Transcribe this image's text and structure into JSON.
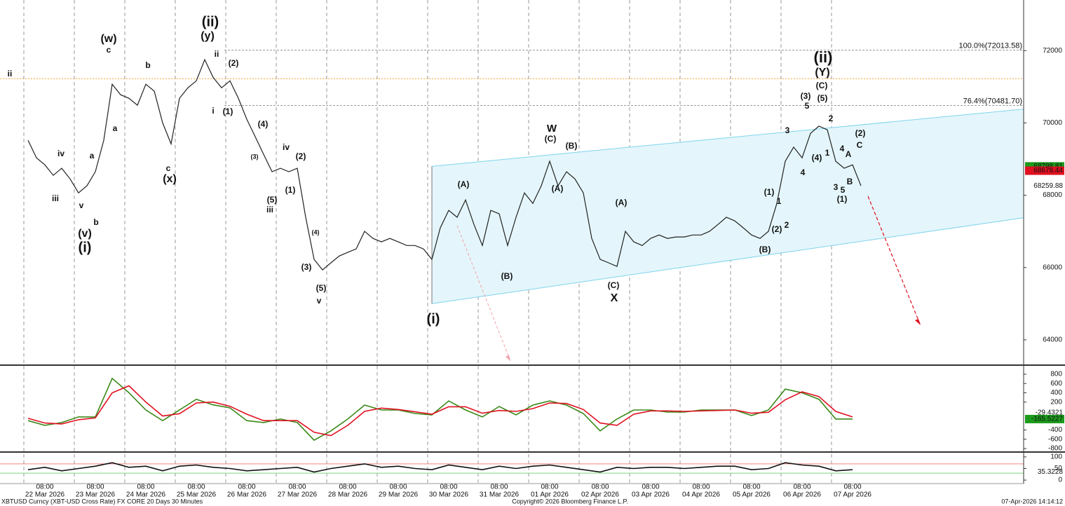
{
  "chart_data": [
    {
      "type": "line",
      "categories": [
        "22 Mar 2026",
        "23 Mar 2026",
        "24 Mar 2026",
        "25 Mar 2026",
        "26 Mar 2026",
        "27 Mar 2026",
        "28 Mar 2026",
        "29 Mar 2026",
        "30 Mar 2026",
        "31 Mar 2026",
        "01 Apr 2026",
        "02 Apr 2026",
        "03 Apr 2026",
        "04 Apr 2026",
        "05 Apr 2026",
        "06 Apr 2026",
        "07 Apr 2026"
      ],
      "hour_label": "08:00",
      "x": [
        "22 Mar 2026 00:00",
        "22 Mar 2026 04:00",
        "22 Mar 2026 08:00",
        "22 Mar 2026 12:00",
        "22 Mar 2026 16:00",
        "22 Mar 2026 20:00",
        "23 Mar 2026 00:00",
        "23 Mar 2026 04:00",
        "23 Mar 2026 08:00",
        "23 Mar 2026 12:00",
        "23 Mar 2026 16:00",
        "23 Mar 2026 20:00",
        "24 Mar 2026 00:00",
        "24 Mar 2026 04:00",
        "24 Mar 2026 08:00",
        "24 Mar 2026 12:00",
        "24 Mar 2026 16:00",
        "24 Mar 2026 20:00",
        "25 Mar 2026 00:00",
        "25 Mar 2026 04:00",
        "25 Mar 2026 08:00",
        "25 Mar 2026 12:00",
        "25 Mar 2026 16:00",
        "25 Mar 2026 20:00",
        "26 Mar 2026 00:00",
        "26 Mar 2026 04:00",
        "26 Mar 2026 08:00",
        "26 Mar 2026 12:00",
        "26 Mar 2026 16:00",
        "26 Mar 2026 20:00",
        "27 Mar 2026 00:00",
        "27 Mar 2026 04:00",
        "27 Mar 2026 08:00",
        "27 Mar 2026 12:00",
        "27 Mar 2026 16:00",
        "27 Mar 2026 20:00",
        "28 Mar 2026 00:00",
        "28 Mar 2026 04:00",
        "28 Mar 2026 08:00",
        "28 Mar 2026 12:00",
        "28 Mar 2026 16:00",
        "28 Mar 2026 20:00",
        "29 Mar 2026 00:00",
        "29 Mar 2026 04:00",
        "29 Mar 2026 08:00",
        "29 Mar 2026 12:00",
        "29 Mar 2026 16:00",
        "29 Mar 2026 20:00",
        "30 Mar 2026 00:00",
        "30 Mar 2026 04:00",
        "30 Mar 2026 08:00",
        "30 Mar 2026 12:00",
        "30 Mar 2026 16:00",
        "30 Mar 2026 20:00",
        "31 Mar 2026 00:00",
        "31 Mar 2026 04:00",
        "31 Mar 2026 08:00",
        "31 Mar 2026 12:00",
        "31 Mar 2026 16:00",
        "31 Mar 2026 20:00",
        "01 Apr 2026 00:00",
        "01 Apr 2026 04:00",
        "01 Apr 2026 08:00",
        "01 Apr 2026 12:00",
        "01 Apr 2026 16:00",
        "01 Apr 2026 20:00",
        "02 Apr 2026 00:00",
        "02 Apr 2026 04:00",
        "02 Apr 2026 08:00",
        "02 Apr 2026 12:00",
        "02 Apr 2026 16:00",
        "02 Apr 2026 20:00",
        "03 Apr 2026 00:00",
        "03 Apr 2026 04:00",
        "03 Apr 2026 08:00",
        "03 Apr 2026 12:00",
        "03 Apr 2026 16:00",
        "03 Apr 2026 20:00",
        "04 Apr 2026 00:00",
        "04 Apr 2026 04:00",
        "04 Apr 2026 08:00",
        "04 Apr 2026 12:00",
        "04 Apr 2026 16:00",
        "04 Apr 2026 20:00",
        "05 Apr 2026 00:00",
        "05 Apr 2026 04:00",
        "05 Apr 2026 08:00",
        "05 Apr 2026 12:00",
        "05 Apr 2026 16:00",
        "05 Apr 2026 20:00",
        "06 Apr 2026 00:00",
        "06 Apr 2026 04:00",
        "06 Apr 2026 08:00",
        "06 Apr 2026 12:00",
        "06 Apr 2026 16:00",
        "06 Apr 2026 20:00",
        "07 Apr 2026 00:00",
        "07 Apr 2026 04:00",
        "07 Apr 2026 08:00",
        "07 Apr 2026 12:00"
      ],
      "series": [
        {
          "color": "#222222",
          "values": [
            69520,
            69035,
            68840,
            68550,
            68745,
            68450,
            68065,
            68260,
            68650,
            69520,
            71070,
            70780,
            70680,
            70490,
            71070,
            70880,
            70000,
            69420,
            70680,
            70970,
            71165,
            71750,
            71260,
            70970,
            71165,
            70680,
            70100,
            69620,
            69130,
            68650,
            68745,
            68650,
            68745,
            67390,
            66225,
            65935,
            66130,
            66320,
            66420,
            66515,
            67000,
            66805,
            66710,
            66805,
            66710,
            66610,
            66610,
            66515,
            66225,
            67100,
            67580,
            67390,
            67870,
            67190,
            66610,
            67580,
            67485,
            66610,
            67390,
            68065,
            67775,
            68260,
            68940,
            68260,
            68650,
            68450,
            68065,
            66805,
            66225,
            66130,
            66030,
            67000,
            66710,
            66610,
            66805,
            66900,
            66805,
            66845,
            66845,
            66900,
            66900,
            67000,
            67190,
            67390,
            67290,
            67100,
            66900,
            66805,
            67000,
            67775,
            68940,
            69330,
            69035,
            69710,
            69910,
            69810,
            68940,
            68745,
            68840,
            68260
          ]
        }
      ],
      "ylim": [
        63300,
        73400
      ],
      "yticks": [
        64000,
        66000,
        68000,
        70000,
        72000
      ],
      "fib_levels": [
        {
          "value": 72013.58,
          "label": "100.0%(72013.58)"
        },
        {
          "value": 70481.7,
          "label": "76.4%(70481.70)"
        }
      ],
      "reference_lines": [
        {
          "value": 71225,
          "color": "#f0a030"
        }
      ],
      "tags": [
        {
          "value": 68798.81,
          "color": "#1c9a1c"
        },
        {
          "value": 68678.44,
          "color": "#e01020"
        },
        {
          "value": 68259.88
        }
      ],
      "channel": {
        "x": [
          "30 Mar 2026 00:00",
          "07 Apr 2026 08:00"
        ],
        "upper": [
          68800,
          69925
        ],
        "lower": [
          65000,
          66690
        ],
        "color": "#7fd4ec"
      },
      "annotations": [
        {
          "text": "ii",
          "color": "#2060a0"
        },
        {
          "text": "iv",
          "color": "#2060a0"
        },
        {
          "text": "iii",
          "color": "#2060a0"
        },
        {
          "text": "a",
          "color": "#2060a0"
        },
        {
          "text": "v",
          "color": "#2060a0"
        },
        {
          "text": "b",
          "color": "#2060a0"
        },
        {
          "text": "(v)",
          "color": "#c86ae8"
        },
        {
          "text": "(i)",
          "color": "#5f8c1e"
        },
        {
          "text": "(w)",
          "color": "#c86ae8"
        },
        {
          "text": "c",
          "color": "#2060a0"
        },
        {
          "text": "a",
          "color": "#2060a0"
        },
        {
          "text": "b",
          "color": "#2060a0"
        },
        {
          "text": "c",
          "color": "#2060a0"
        },
        {
          "text": "(x)",
          "color": "#c86ae8"
        },
        {
          "text": "(ii)",
          "color": "#5f8c1e"
        },
        {
          "text": "(y)",
          "color": "#c86ae8"
        },
        {
          "text": "ii",
          "color": "#2060a0"
        },
        {
          "text": "(2)",
          "color": "#e8103c"
        },
        {
          "text": "i",
          "color": "#2060a0"
        },
        {
          "text": "(1)",
          "color": "#e8103c"
        },
        {
          "text": "(4)",
          "color": "#e8103c"
        },
        {
          "text": "(3)",
          "color": "#e8103c"
        },
        {
          "text": "iv",
          "color": "#2060a0"
        },
        {
          "text": "(2)",
          "color": "#e8103c"
        },
        {
          "text": "(1)",
          "color": "#e8103c"
        },
        {
          "text": "(5)",
          "color": "#e8103c"
        },
        {
          "text": "iii",
          "color": "#2060a0"
        },
        {
          "text": "(4)",
          "color": "#e8103c"
        },
        {
          "text": "(3)",
          "color": "#e8103c"
        },
        {
          "text": "(5)",
          "color": "#e8103c"
        },
        {
          "text": "v",
          "color": "#2060a0"
        },
        {
          "text": "(i)",
          "color": "#c86ae8"
        },
        {
          "text": "(A)",
          "color": "#2060a0"
        },
        {
          "text": "(B)",
          "color": "#2060a0"
        },
        {
          "text": "W",
          "color": "#5f8c1e"
        },
        {
          "text": "(C)",
          "color": "#2060a0"
        },
        {
          "text": "(B)",
          "color": "#2060a0"
        },
        {
          "text": "(A)",
          "color": "#2060a0"
        },
        {
          "text": "(A)",
          "color": "#2060a0"
        },
        {
          "text": "(C)",
          "color": "#2060a0"
        },
        {
          "text": "X",
          "color": "#5f8c1e"
        },
        {
          "text": "(B)",
          "color": "#2060a0"
        },
        {
          "text": "(2)",
          "color": "#e8103c"
        },
        {
          "text": "1",
          "color": "#5f8c1e"
        },
        {
          "text": "(1)",
          "color": "#e8103c"
        },
        {
          "text": "2",
          "color": "#5f8c1e"
        },
        {
          "text": "3",
          "color": "#5f8c1e"
        },
        {
          "text": "4",
          "color": "#5f8c1e"
        },
        {
          "text": "(4)",
          "color": "#e8103c"
        },
        {
          "text": "5",
          "color": "#5f8c1e"
        },
        {
          "text": "(3)",
          "color": "#e8103c"
        },
        {
          "text": "(5)",
          "color": "#e8103c"
        },
        {
          "text": "(C)",
          "color": "#2060a0"
        },
        {
          "text": "(Y)",
          "color": "#5f8c1e"
        },
        {
          "text": "(ii)",
          "color": "#c86ae8"
        },
        {
          "text": "2",
          "color": "#5f8c1e"
        },
        {
          "text": "1",
          "color": "#5f8c1e"
        },
        {
          "text": "4",
          "color": "#5f8c1e"
        },
        {
          "text": "A",
          "color": "#5f8c1e"
        },
        {
          "text": "(2)",
          "color": "#2060a0"
        },
        {
          "text": "C",
          "color": "#5f8c1e"
        },
        {
          "text": "B",
          "color": "#5f8c1e"
        },
        {
          "text": "3",
          "color": "#5f8c1e"
        },
        {
          "text": "5",
          "color": "#5f8c1e"
        },
        {
          "text": "(1)",
          "color": "#2060a0"
        }
      ]
    },
    {
      "type": "line",
      "x": [
        "22 Mar 2026 00:00",
        "22 Mar 2026 08:00",
        "22 Mar 2026 16:00",
        "23 Mar 2026 00:00",
        "23 Mar 2026 08:00",
        "23 Mar 2026 16:00",
        "24 Mar 2026 00:00",
        "24 Mar 2026 08:00",
        "24 Mar 2026 16:00",
        "25 Mar 2026 00:00",
        "25 Mar 2026 08:00",
        "25 Mar 2026 16:00",
        "26 Mar 2026 00:00",
        "26 Mar 2026 08:00",
        "26 Mar 2026 16:00",
        "27 Mar 2026 00:00",
        "27 Mar 2026 08:00",
        "27 Mar 2026 16:00",
        "28 Mar 2026 00:00",
        "28 Mar 2026 08:00",
        "28 Mar 2026 16:00",
        "29 Mar 2026 00:00",
        "29 Mar 2026 08:00",
        "29 Mar 2026 16:00",
        "30 Mar 2026 00:00",
        "30 Mar 2026 08:00",
        "30 Mar 2026 16:00",
        "31 Mar 2026 00:00",
        "31 Mar 2026 08:00",
        "31 Mar 2026 16:00",
        "01 Apr 2026 00:00",
        "01 Apr 2026 08:00",
        "01 Apr 2026 16:00",
        "02 Apr 2026 00:00",
        "02 Apr 2026 08:00",
        "02 Apr 2026 16:00",
        "03 Apr 2026 00:00",
        "03 Apr 2026 08:00",
        "03 Apr 2026 16:00",
        "04 Apr 2026 00:00",
        "04 Apr 2026 08:00",
        "04 Apr 2026 16:00",
        "05 Apr 2026 00:00",
        "05 Apr 2026 08:00",
        "05 Apr 2026 16:00",
        "06 Apr 2026 00:00",
        "06 Apr 2026 08:00",
        "06 Apr 2026 16:00",
        "07 Apr 2026 00:00",
        "07 Apr 2026 08:00"
      ],
      "series": [
        {
          "color": "#3a8a1a",
          "values": [
            -200,
            -300,
            -240,
            -120,
            -120,
            710,
            400,
            30,
            -200,
            30,
            260,
            140,
            75,
            -200,
            -240,
            -165,
            -240,
            -620,
            -420,
            -165,
            135,
            30,
            30,
            -45,
            -75,
            225,
            30,
            -120,
            105,
            -75,
            135,
            225,
            135,
            -45,
            -420,
            -165,
            30,
            30,
            -15,
            -15,
            30,
            30,
            30,
            -90,
            30,
            480,
            400,
            260,
            -165,
            -165
          ]
        },
        {
          "color": "#e01020",
          "values": [
            -150,
            -250,
            -270,
            -180,
            -140,
            400,
            550,
            200,
            -100,
            -50,
            180,
            200,
            110,
            -60,
            -200,
            -200,
            -200,
            -450,
            -520,
            -300,
            0,
            70,
            40,
            -10,
            -60,
            100,
            100,
            -40,
            20,
            0,
            60,
            180,
            170,
            40,
            -250,
            -300,
            -60,
            10,
            10,
            0,
            10,
            20,
            30,
            -40,
            -20,
            250,
            420,
            320,
            0,
            -120
          ]
        }
      ],
      "ylim": [
        -875,
        980
      ],
      "yticks": [
        -800,
        -600,
        -400,
        200,
        400,
        600,
        800
      ],
      "tags": [
        {
          "value": -29.4321
        },
        {
          "value": -165.5227,
          "color": "#1c9a1c"
        }
      ]
    },
    {
      "type": "line",
      "x": [
        "22 Mar 2026 00:00",
        "22 Mar 2026 08:00",
        "22 Mar 2026 16:00",
        "23 Mar 2026 00:00",
        "23 Mar 2026 08:00",
        "23 Mar 2026 16:00",
        "24 Mar 2026 00:00",
        "24 Mar 2026 08:00",
        "24 Mar 2026 16:00",
        "25 Mar 2026 00:00",
        "25 Mar 2026 08:00",
        "25 Mar 2026 16:00",
        "26 Mar 2026 00:00",
        "26 Mar 2026 08:00",
        "26 Mar 2026 16:00",
        "27 Mar 2026 00:00",
        "27 Mar 2026 08:00",
        "27 Mar 2026 16:00",
        "28 Mar 2026 00:00",
        "28 Mar 2026 08:00",
        "28 Mar 2026 16:00",
        "29 Mar 2026 00:00",
        "29 Mar 2026 08:00",
        "29 Mar 2026 16:00",
        "30 Mar 2026 00:00",
        "30 Mar 2026 08:00",
        "30 Mar 2026 16:00",
        "31 Mar 2026 00:00",
        "31 Mar 2026 08:00",
        "31 Mar 2026 16:00",
        "01 Apr 2026 00:00",
        "01 Apr 2026 08:00",
        "01 Apr 2026 16:00",
        "02 Apr 2026 00:00",
        "02 Apr 2026 08:00",
        "02 Apr 2026 16:00",
        "03 Apr 2026 00:00",
        "03 Apr 2026 08:00",
        "03 Apr 2026 16:00",
        "04 Apr 2026 00:00",
        "04 Apr 2026 08:00",
        "04 Apr 2026 16:00",
        "05 Apr 2026 00:00",
        "05 Apr 2026 08:00",
        "05 Apr 2026 16:00",
        "06 Apr 2026 00:00",
        "06 Apr 2026 08:00",
        "06 Apr 2026 16:00",
        "07 Apr 2026 00:00",
        "07 Apr 2026 08:00"
      ],
      "series": [
        {
          "color": "#111111",
          "values": [
            45,
            55,
            40,
            50,
            60,
            75,
            55,
            60,
            40,
            60,
            65,
            55,
            50,
            40,
            45,
            50,
            55,
            35,
            50,
            60,
            70,
            55,
            60,
            50,
            45,
            65,
            55,
            45,
            60,
            50,
            60,
            65,
            55,
            45,
            35,
            55,
            50,
            55,
            55,
            50,
            55,
            60,
            60,
            45,
            50,
            75,
            65,
            60,
            40,
            45
          ]
        }
      ],
      "ylim": [
        -15,
        118
      ],
      "yticks": [
        0,
        50,
        100
      ],
      "reference_lines": [
        {
          "value": 70,
          "color": "#f08080"
        },
        {
          "value": 30,
          "color": "#7cd67c"
        }
      ],
      "tags": [
        {
          "value": 35.3228
        }
      ]
    }
  ],
  "footer": {
    "left": "XBTUSD Curncy (XBT-USD Cross Rate) FX CORE 20 Days 30 Minutes",
    "center": "Copyright© 2026 Bloomberg Finance L.P.",
    "right": "07-Apr-2026 14:14:12"
  }
}
